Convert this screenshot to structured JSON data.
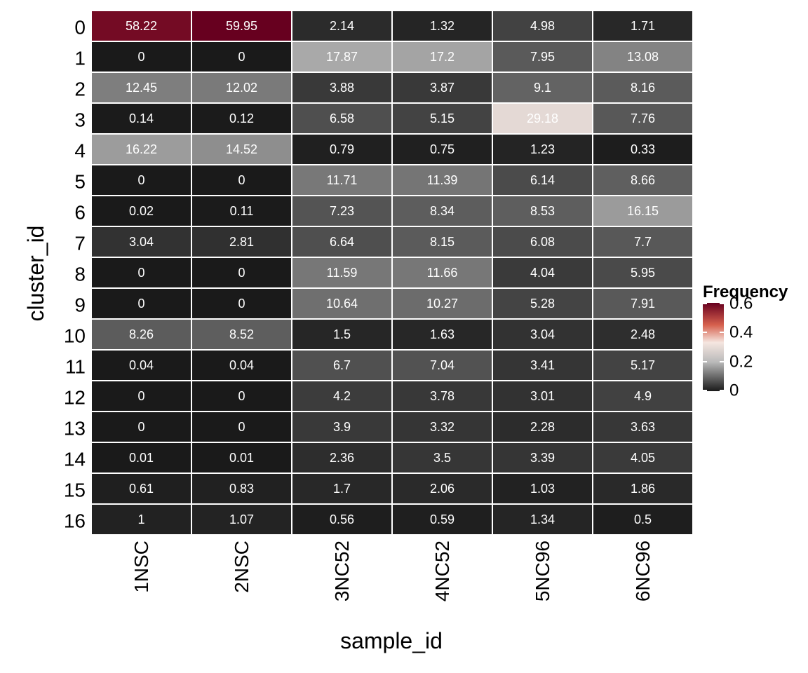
{
  "chart_data": {
    "type": "heatmap",
    "xlabel": "sample_id",
    "ylabel": "cluster_id",
    "x_categories": [
      "1NSC",
      "2NSC",
      "3NC52",
      "4NC52",
      "5NC96",
      "6NC96"
    ],
    "y_categories": [
      "0",
      "1",
      "2",
      "3",
      "4",
      "5",
      "6",
      "7",
      "8",
      "9",
      "10",
      "11",
      "12",
      "13",
      "14",
      "15",
      "16"
    ],
    "cell_labels": [
      [
        "58.22",
        "59.95",
        "2.14",
        "1.32",
        "4.98",
        "1.71"
      ],
      [
        "0",
        "0",
        "17.87",
        "17.2",
        "7.95",
        "13.08"
      ],
      [
        "12.45",
        "12.02",
        "3.88",
        "3.87",
        "9.1",
        "8.16"
      ],
      [
        "0.14",
        "0.12",
        "6.58",
        "5.15",
        "29.18",
        "7.76"
      ],
      [
        "16.22",
        "14.52",
        "0.79",
        "0.75",
        "1.23",
        "0.33"
      ],
      [
        "0",
        "0",
        "11.71",
        "11.39",
        "6.14",
        "8.66"
      ],
      [
        "0.02",
        "0.11",
        "7.23",
        "8.34",
        "8.53",
        "16.15"
      ],
      [
        "3.04",
        "2.81",
        "6.64",
        "8.15",
        "6.08",
        "7.7"
      ],
      [
        "0",
        "0",
        "11.59",
        "11.66",
        "4.04",
        "5.95"
      ],
      [
        "0",
        "0",
        "10.64",
        "10.27",
        "5.28",
        "7.91"
      ],
      [
        "8.26",
        "8.52",
        "1.5",
        "1.63",
        "3.04",
        "2.48"
      ],
      [
        "0.04",
        "0.04",
        "6.7",
        "7.04",
        "3.41",
        "5.17"
      ],
      [
        "0",
        "0",
        "4.2",
        "3.78",
        "3.01",
        "4.9"
      ],
      [
        "0",
        "0",
        "3.9",
        "3.32",
        "2.28",
        "3.63"
      ],
      [
        "0.01",
        "0.01",
        "2.36",
        "3.5",
        "3.39",
        "4.05"
      ],
      [
        "0.61",
        "0.83",
        "1.7",
        "2.06",
        "1.03",
        "1.86"
      ],
      [
        "1",
        "1.07",
        "0.56",
        "0.59",
        "1.34",
        "0.5"
      ]
    ],
    "legend": {
      "title": "Frequency",
      "ticks": [
        0,
        0.2,
        0.4,
        0.6
      ],
      "tick_labels": [
        "0",
        "0.2",
        "0.4",
        "0.6"
      ],
      "range": [
        0,
        0.6
      ]
    },
    "colors": {
      "low": "#1a1a1a",
      "mid_low": "#bababa",
      "mid": "#f5e6e0",
      "mid_high": "#d6604d",
      "high": "#67001f",
      "cell_border": "#ffffff",
      "cell_text": "#ffffff"
    }
  }
}
